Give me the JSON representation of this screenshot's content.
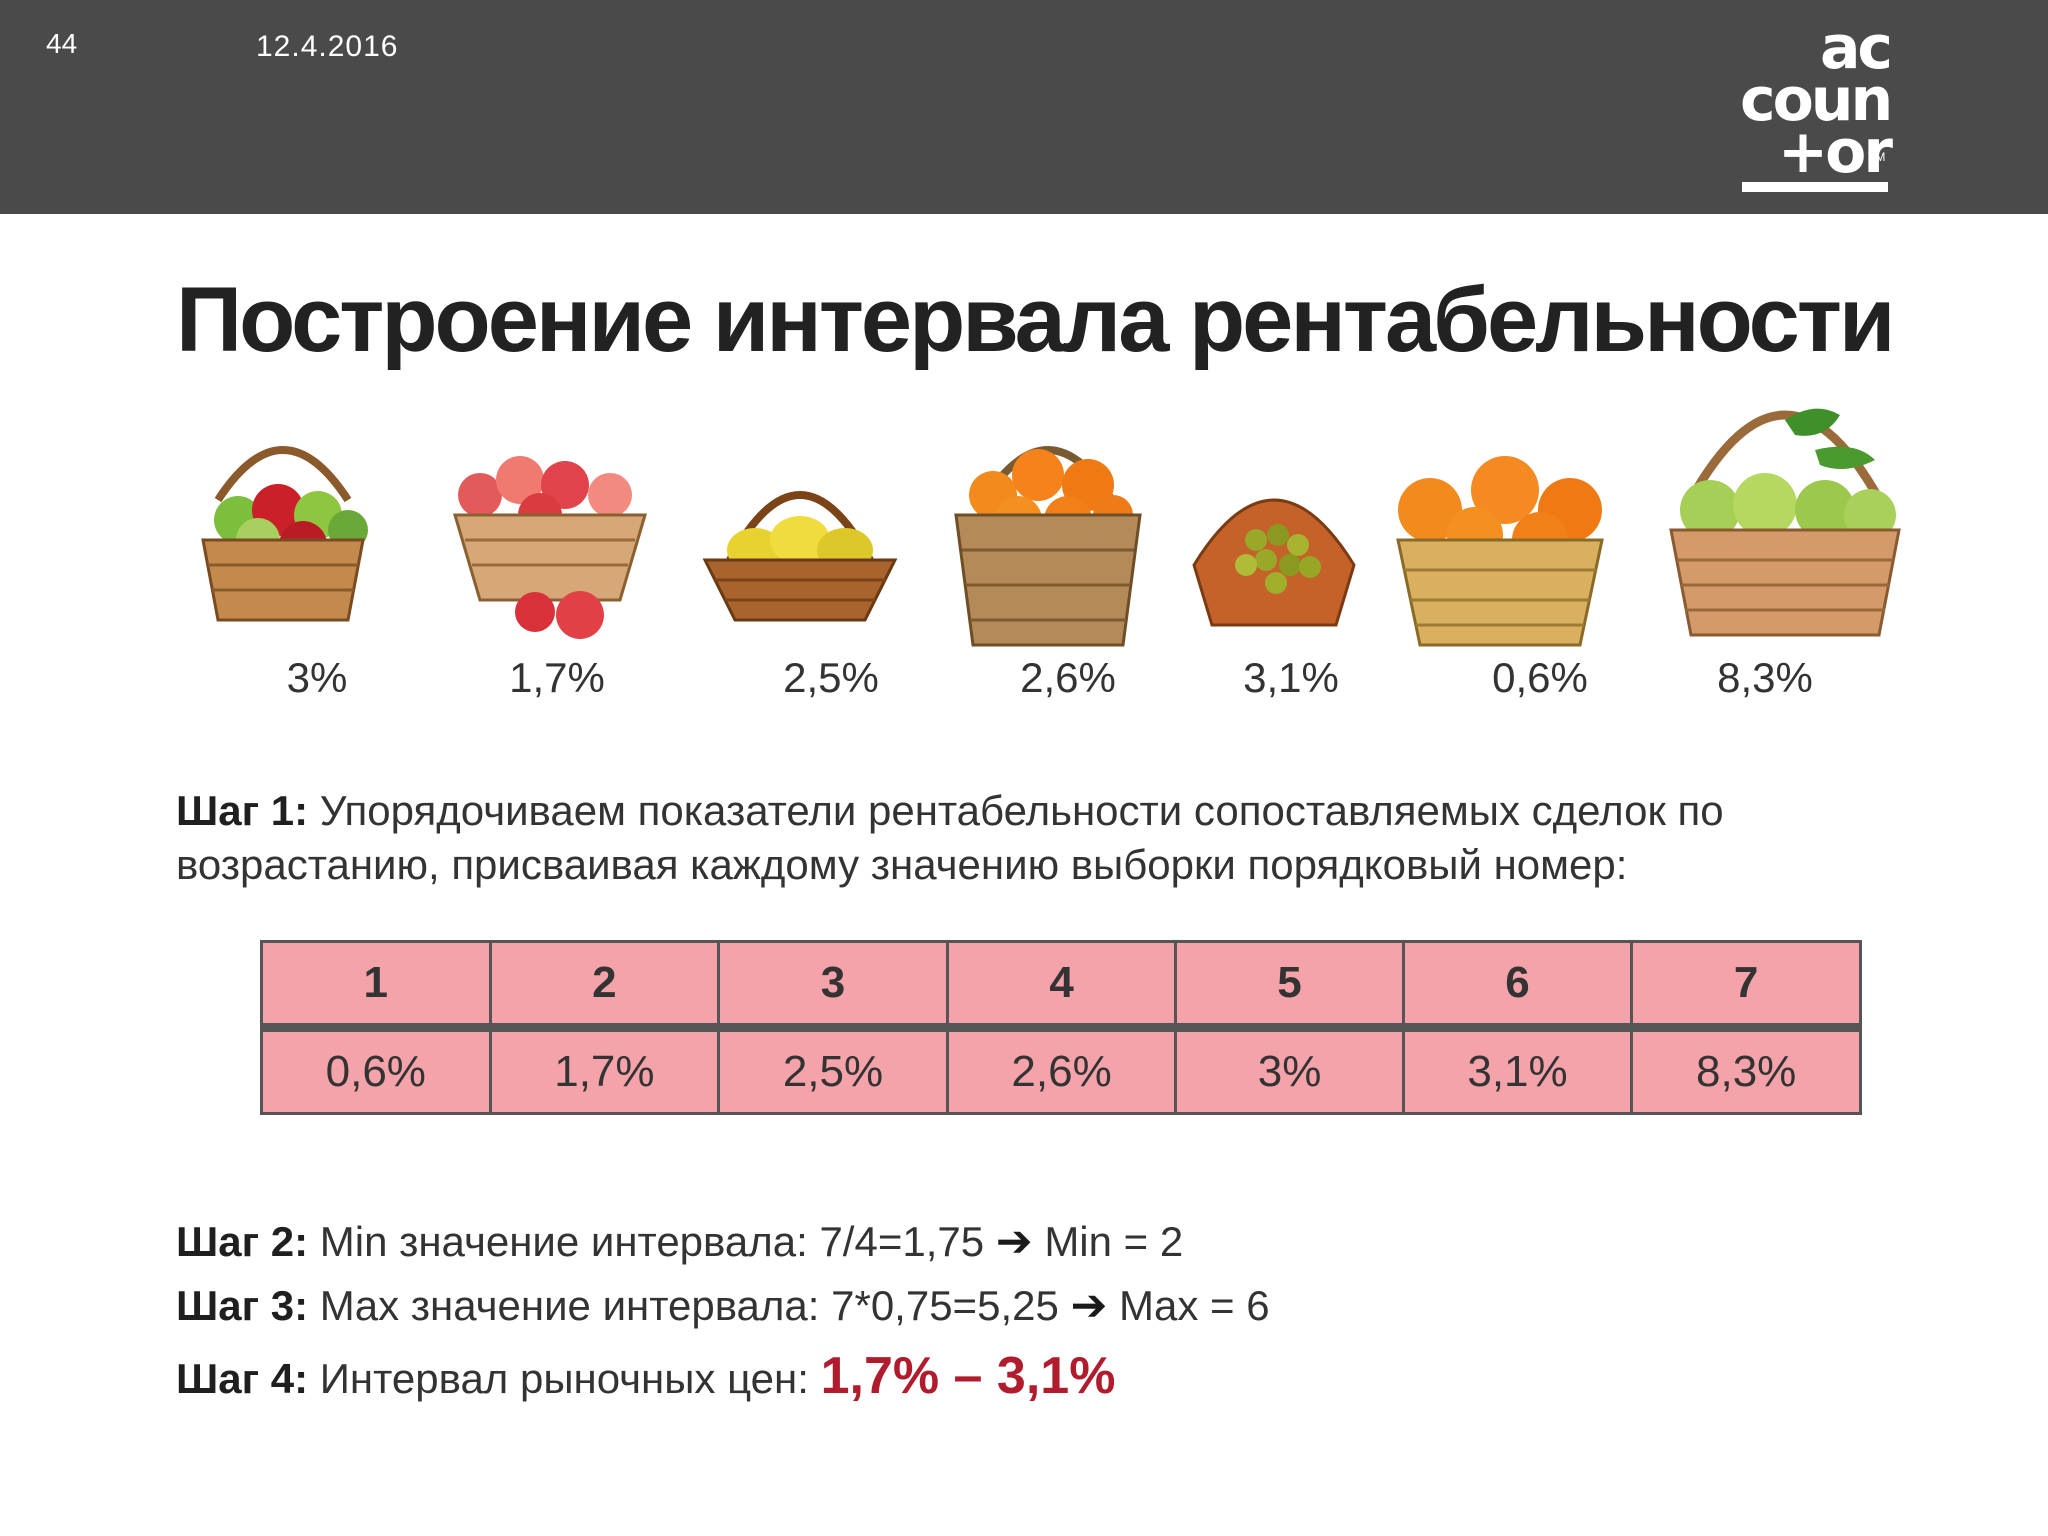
{
  "header": {
    "slide_number": "44",
    "date": "12.4.2016",
    "logo_lines": [
      "ac",
      "coun",
      "+or"
    ],
    "logo_tm": "TM"
  },
  "title": "Построение интервала рентабельности",
  "baskets": [
    {
      "fruit": "apples-mixed",
      "percent": "3%"
    },
    {
      "fruit": "red-apples",
      "percent": "1,7%"
    },
    {
      "fruit": "yellow-quinces",
      "percent": "2,5%"
    },
    {
      "fruit": "oranges",
      "percent": "2,6%"
    },
    {
      "fruit": "grapes",
      "percent": "3,1%"
    },
    {
      "fruit": "oranges-large",
      "percent": "0,6%"
    },
    {
      "fruit": "green-apples",
      "percent": "8,3%"
    }
  ],
  "step1": {
    "label": "Шаг 1:",
    "text": " Упорядочиваем показатели рентабельности сопоставляемых сделок по возрастанию, присваивая каждому значению выборки порядковый номер:"
  },
  "table": {
    "ranks": [
      "1",
      "2",
      "3",
      "4",
      "5",
      "6",
      "7"
    ],
    "values": [
      "0,6%",
      "1,7%",
      "2,5%",
      "2,6%",
      "3%",
      "3,1%",
      "8,3%"
    ]
  },
  "step2": {
    "label": "Шаг 2:",
    "text": " Min значение интервала: 7/4=1,75 ",
    "arrow": "➔",
    "result": "  Min = 2"
  },
  "step3": {
    "label": "Шаг 3:",
    "text": " Max значение интервала: 7*0,75=5,25 ",
    "arrow": "➔",
    "result": " Max = 6"
  },
  "step4": {
    "label": "Шаг 4:",
    "text": " Интервал рыночных цен: ",
    "result": "1,7% – 3,1%"
  },
  "colors": {
    "header_bg": "#4a4a4a",
    "table_bg": "#f4a3aa",
    "accent_red": "#b01c2e"
  }
}
